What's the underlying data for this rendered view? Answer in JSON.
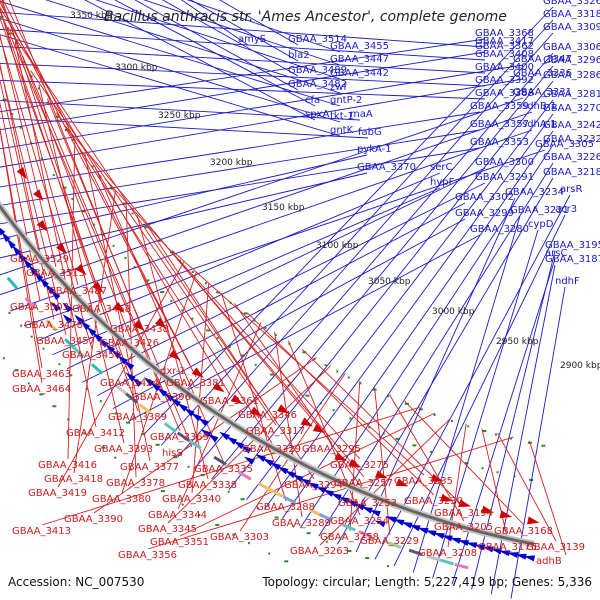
{
  "title": "Bacillus anthracis str. 'Ames Ancestor', complete genome",
  "footer": {
    "accession": "Accession: NC_007530",
    "summary": "Topology: circular; Length: 5,227,419 bp; Genes: 5,336"
  },
  "colors": {
    "forward_genes": "#cc0000",
    "reverse_genes": "#0000cc",
    "backbone": "#666666",
    "cds_dots": "#2a8a2a"
  },
  "kbp_labels": [
    "3350 kbp",
    "3300 kbp",
    "3250 kbp",
    "3200 kbp",
    "3150 kbp",
    "3100 kbp",
    "3050 kbp",
    "3000 kbp",
    "2950 kbp",
    "2900 kbp"
  ],
  "blue_genes": [
    "amyS",
    "GBAA_3514",
    "bla2",
    "GBAA_3489",
    "GBAA_3482",
    "cfa",
    "spxA",
    "GBAA_3455",
    "GBAA_3447",
    "GBAA_3442",
    "zwf",
    "gntP-2",
    "tkt-1",
    "gntK",
    "GBAA_3417",
    "GBAA_3408",
    "GBAA_3400",
    "GBAA_3392",
    "GBAA_3383",
    "maA",
    "fabG",
    "GBAA_3368",
    "GBAA_3362",
    "GBAA_3347",
    "GBAA_3336",
    "GBAA_3359",
    "GBAA_3357",
    "GBAA_3353",
    "pykA-1",
    "GBAA_3370",
    "GBAA_3331",
    "sdhB-1",
    "sdhA-1",
    "GBAA_3305",
    "serC",
    "hypF",
    "GBAA_3300",
    "GBAA_3291",
    "GBAA_3302",
    "GBAA_3299",
    "GBAA_3280",
    "GBAA_3326",
    "GBAA_3318",
    "GBAA_3309",
    "GBAA_3306",
    "GBAA_3296",
    "GBAA_3286",
    "GBAA_3281",
    "GBAA_3270",
    "GBAA_3242",
    "GBAA_3232",
    "GBAA_3226",
    "GBAA_3218",
    "GBAA_3234",
    "arsR",
    "acr3",
    "GBAA_3231",
    "cypD",
    "arsC",
    "GBAA_3195",
    "GBAA_3187",
    "ndhF"
  ],
  "red_genes": [
    "GBAA_3529",
    "GBAA_3513",
    "GBAA_3487",
    "GBAA_3503",
    "GBAA_3468",
    "GBAA_3478",
    "GBAA_3438",
    "GBAA_3457",
    "GBAA_3426",
    "GBAA_3450",
    "GBAA_3463",
    "GBAA_3464",
    "dxr-1",
    "GBAA_3424",
    "GBAA_3381",
    "GBAA_3396",
    "GBAA_3361",
    "GBAA_3389",
    "GBAA_3346",
    "GBAA_3412",
    "GBAA_3369",
    "GBAA_3317",
    "GBAA_3393",
    "hisS",
    "GBAA_3329",
    "GBAA_3295",
    "GBAA_3416",
    "GBAA_3377",
    "GBAA_3335",
    "GBAA_3275",
    "GBAA_3418",
    "GBAA_3378",
    "GBAA_3338",
    "GBAA_3294",
    "GBAA_3257",
    "GBAA_3235",
    "GBAA_3419",
    "GBAA_3380",
    "GBAA_3340",
    "GBAA_3288",
    "GBAA_3253",
    "GBAA_3230",
    "GBAA_3344",
    "GBAA_3289",
    "GBAA_3254",
    "GBAA_3194",
    "GBAA_3390",
    "GBAA_3345",
    "GBAA_3303",
    "GBAA_3258",
    "GBAA_3229",
    "GBAA_3205",
    "GBAA_3168",
    "GBAA_3413",
    "GBAA_3351",
    "GBAA_3263",
    "GBAA_3208",
    "GBAA_3175",
    "GBAA_3139",
    "GBAA_3356",
    "adhB"
  ]
}
